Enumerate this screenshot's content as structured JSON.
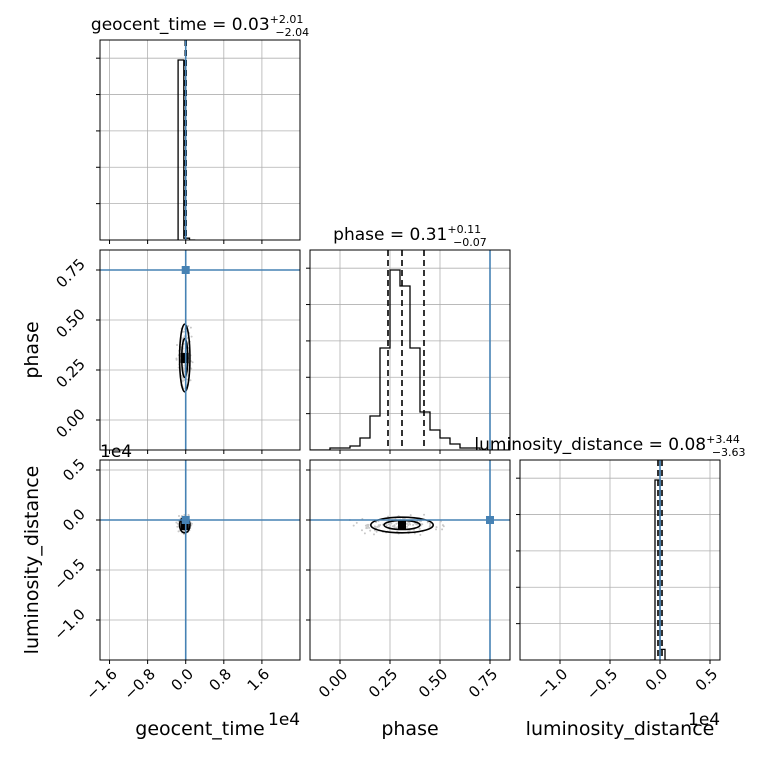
{
  "chart_data": {
    "type": "corner",
    "truth_color": "#4682b4",
    "parameters": [
      {
        "name": "geocent_time",
        "median": "0.03",
        "plus": "+2.01",
        "minus": "−2.04",
        "axis_label": "geocent_time",
        "offset_text": "1e4",
        "range": [
          -1.8,
          2.4
        ],
        "ticks": [
          -1.6,
          -0.8,
          0.0,
          0.8,
          1.6
        ],
        "tick_labels": [
          "−1.6",
          "−0.8",
          "0.0",
          "0.8",
          "1.6"
        ],
        "truth": 0.0,
        "quantiles": [
          -0.01,
          0.0,
          0.01
        ],
        "hist_edges": [
          -0.16,
          -0.04,
          0.08,
          0.2
        ],
        "hist_values": [
          1.0,
          0.01,
          0.0
        ]
      },
      {
        "name": "phase",
        "median": "0.31",
        "plus": "+0.11",
        "minus": "−0.07",
        "axis_label": "phase",
        "offset_text": "",
        "range": [
          -0.15,
          0.85
        ],
        "ticks": [
          0.0,
          0.25,
          0.5,
          0.75
        ],
        "tick_labels": [
          "0.00",
          "0.25",
          "0.50",
          "0.75"
        ],
        "truth": 0.75,
        "quantiles": [
          0.24,
          0.31,
          0.42
        ],
        "hist_edges": [
          -0.15,
          -0.1,
          -0.05,
          0.0,
          0.05,
          0.1,
          0.15,
          0.2,
          0.25,
          0.3,
          0.35,
          0.4,
          0.45,
          0.5,
          0.55,
          0.6,
          0.65,
          0.7,
          0.75,
          0.8,
          0.85
        ],
        "hist_values": [
          0.0,
          0.0,
          0.01,
          0.01,
          0.02,
          0.06,
          0.17,
          0.51,
          0.9,
          0.82,
          0.51,
          0.19,
          0.1,
          0.06,
          0.03,
          0.01,
          0.01,
          0.0,
          0.0,
          0.0
        ]
      },
      {
        "name": "luminosity_distance",
        "median": "0.08",
        "plus": "+3.44",
        "minus": "−3.63",
        "axis_label": "luminosity_distance",
        "offset_text": "1e4",
        "range": [
          -1.4,
          0.6
        ],
        "ticks": [
          -1.0,
          -0.5,
          0.0,
          0.5
        ],
        "tick_labels": [
          "−1.0",
          "−0.5",
          "0.0",
          "0.5"
        ],
        "truth": 0.0,
        "quantiles": [
          -0.02,
          0.0,
          0.02
        ],
        "hist_edges": [
          -0.1,
          -0.05,
          0.0,
          0.05,
          0.1
        ],
        "hist_values": [
          0.0,
          0.85,
          0.05,
          0.0
        ]
      }
    ],
    "y_ticks": {
      "phase": {
        "ticks": [
          0.0,
          0.25,
          0.5,
          0.75
        ],
        "tick_labels": [
          "0.00",
          "0.25",
          "0.50",
          "0.75"
        ]
      },
      "luminosity_distance": {
        "ticks": [
          -1.0,
          -0.5,
          0.0,
          0.5
        ],
        "tick_labels": [
          "−1.0",
          "−0.5",
          "0.0",
          "0.5"
        ]
      }
    },
    "pair_centers": {
      "phase_vs_geocent_time": [
        -0.02,
        0.31
      ],
      "luminosity_distance_vs_geocent_time": [
        -0.02,
        -0.05
      ],
      "luminosity_distance_vs_phase": [
        0.31,
        -0.05
      ]
    },
    "grid": true
  }
}
